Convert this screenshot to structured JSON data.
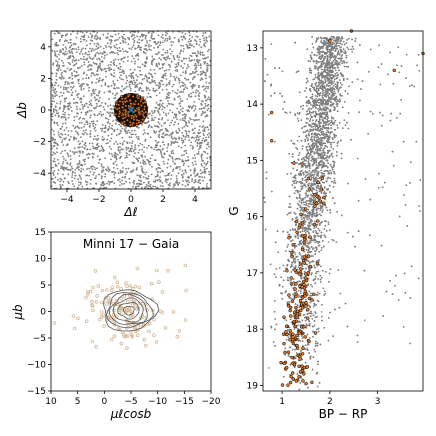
{
  "chart_data": [
    {
      "id": "spatial",
      "type": "scatter",
      "xlabel": "Δℓ",
      "ylabel": "Δb",
      "xlim": [
        -5,
        5
      ],
      "ylim": [
        -5,
        5
      ],
      "xticks": [
        -4,
        -2,
        0,
        2,
        4
      ],
      "yticks": [
        -4,
        -2,
        0,
        2,
        4
      ],
      "series": [
        {
          "role": "field",
          "color": "#7f7f7f",
          "count": 2600,
          "distribution": "uniform"
        },
        {
          "role": "members",
          "color": "#e07b2e",
          "edge": "#000000",
          "radius": 1.2,
          "count": 140,
          "distribution": "disk"
        },
        {
          "role": "center",
          "color": "#1f77b4",
          "marker": "x",
          "x": 0,
          "y": 0
        }
      ]
    },
    {
      "id": "propermotion",
      "type": "scatter",
      "title": "Minni 17 − Gaia",
      "xlabel": "μℓcosb",
      "ylabel": "μb",
      "xlim": [
        10,
        -20
      ],
      "ylim": [
        -15,
        15
      ],
      "xticks": [
        10,
        5,
        0,
        -5,
        -10,
        -15,
        -20
      ],
      "yticks": [
        -15,
        -10,
        -5,
        0,
        5,
        10,
        15
      ],
      "series": [
        {
          "role": "stars",
          "color": "#d4b896",
          "count": 170,
          "center": [
            -4.5,
            0.0
          ],
          "spread": [
            3.6,
            3.1
          ]
        },
        {
          "role": "density-contours",
          "color": "#555555",
          "center": [
            -4.6,
            0.2
          ],
          "radii": [
            [
              1.0,
              0.8
            ],
            [
              2.0,
              1.5
            ],
            [
              2.8,
              2.2
            ],
            [
              3.5,
              2.8
            ],
            [
              4.2,
              3.3
            ],
            [
              5.0,
              3.9
            ]
          ]
        }
      ]
    },
    {
      "id": "cmd",
      "type": "scatter",
      "xlabel": "BP − RP",
      "ylabel": "G",
      "xlim": [
        0.6,
        3.95
      ],
      "ylim": [
        19.1,
        12.7
      ],
      "xticks": [
        1,
        2,
        3
      ],
      "yticks": [
        13,
        14,
        15,
        16,
        17,
        18,
        19
      ],
      "series": [
        {
          "role": "field",
          "color": "#808080",
          "count": 9000,
          "sequence": [
            [
              12.8,
              2.05
            ],
            [
              14.0,
              1.85
            ],
            [
              15.0,
              1.7
            ],
            [
              16.0,
              1.55
            ],
            [
              17.0,
              1.45
            ],
            [
              18.0,
              1.4
            ],
            [
              19.1,
              1.35
            ]
          ]
        },
        {
          "role": "members",
          "color": "#e07b2e",
          "edge": "#000000",
          "radius": 1.5,
          "count": 190,
          "sequence": [
            [
              15.0,
              1.75
            ],
            [
              16.0,
              1.55
            ],
            [
              17.0,
              1.4
            ],
            [
              18.0,
              1.3
            ],
            [
              19.0,
              1.3
            ]
          ]
        },
        {
          "role": "members-bright",
          "color": "#e07b2e",
          "edge": "#000000",
          "radius": 1.5,
          "points": [
            [
              2.0,
              12.88
            ],
            [
              2.45,
              12.7
            ],
            [
              3.95,
              13.1
            ],
            [
              0.78,
              14.15
            ],
            [
              0.78,
              14.65
            ],
            [
              1.25,
              15.05
            ],
            [
              3.35,
              13.4
            ]
          ]
        }
      ]
    }
  ]
}
